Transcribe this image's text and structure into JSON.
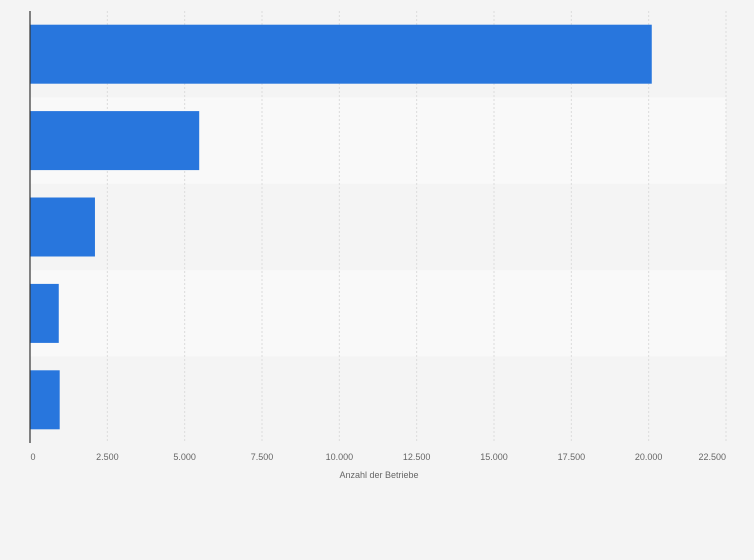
{
  "chart_data": {
    "type": "bar",
    "orientation": "horizontal",
    "categories": [
      "",
      "",
      "",
      "",
      ""
    ],
    "values": [
      20100,
      5470,
      2100,
      930,
      960
    ],
    "title": "",
    "xlabel": "Anzahl der Betriebe",
    "ylabel": "",
    "xlim": [
      0,
      22500
    ],
    "x_ticks": [
      0,
      2500,
      5000,
      7500,
      10000,
      12500,
      15000,
      17500,
      20000,
      22500
    ],
    "x_tick_labels": [
      "0",
      "2.500",
      "5.000",
      "7.500",
      "10.000",
      "12.500",
      "15.000",
      "17.500",
      "20.000",
      "22.500"
    ],
    "grid": true,
    "legend": "none",
    "bar_color": "#2876dd",
    "band_colors": [
      "#f4f4f4",
      "#f9f9f9"
    ],
    "grid_color": "#dcdcdc",
    "axis_color": "#333333",
    "text_color": "#666666"
  }
}
